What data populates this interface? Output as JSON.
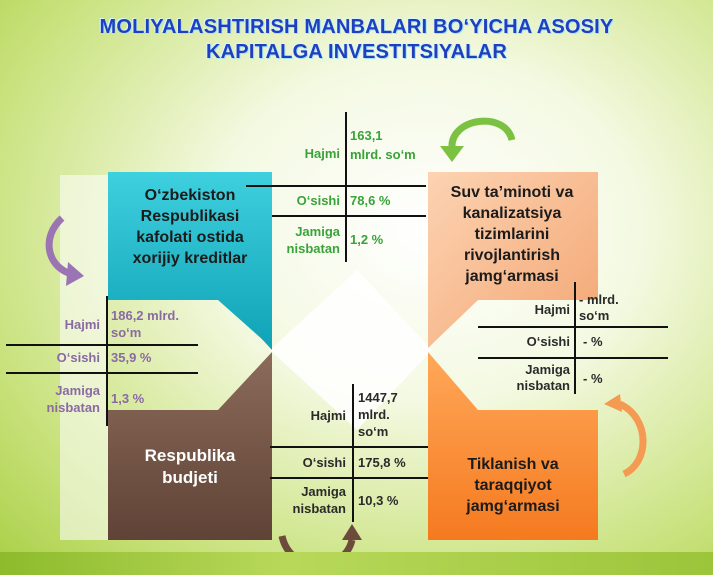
{
  "title": {
    "line1": "MOLIYALASHTIRISH MANBALARI BO‘YICHA ASOSIY",
    "line2": "KAPITALGA  INVESTITSIYALAR"
  },
  "colors": {
    "teal": "#1fb7c9",
    "peach": "#f6b283",
    "brown": "#7a5a4a",
    "orange": "#f98b2f",
    "green_text": "#39a33a",
    "purple_text": "#8a6aa3",
    "title": "#1f3fbf"
  },
  "sources": {
    "foreign": {
      "name": "O‘zbekiston Respublikasi kafolati ostida xorijiy kreditlar",
      "lines": [
        "O‘zbekiston",
        "Respublikasi",
        "kafolati ostida",
        "xorijiy kreditlar"
      ],
      "hajmi_label": "Hajmi",
      "hajmi_value_1": "163,1",
      "hajmi_value_2": "mlrd. so‘m",
      "osishi_label": "O‘sishi",
      "osishi_value": "78,6 %",
      "jamiga_label_1": "Jamiga",
      "jamiga_label_2": "nisbatan",
      "jamiga_value": "1,2 %"
    },
    "water": {
      "lines": [
        "Suv ta’minoti va",
        "kanalizatsiya",
        "tizimlarini",
        "rivojlantirish",
        "jamg‘armasi"
      ],
      "hajmi_label": "Hajmi",
      "hajmi_value_1": "- mlrd.",
      "hajmi_value_2": "so‘m",
      "osishi_label": "O‘sishi",
      "osishi_value": "- %",
      "jamiga_label_1": "Jamiga",
      "jamiga_label_2": "nisbatan",
      "jamiga_value": "- %"
    },
    "budget": {
      "lines": [
        "Respublika",
        "budjeti"
      ],
      "hajmi_label": "Hajmi",
      "hajmi_value_1": "186,2 mlrd.",
      "hajmi_value_2": "so‘m",
      "osishi_label": "O‘sishi",
      "osishi_value": "35,9 %",
      "jamiga_label_1": "Jamiga",
      "jamiga_label_2": "nisbatan",
      "jamiga_value": "1,3 %"
    },
    "development": {
      "lines": [
        "Tiklanish va",
        "taraqqiyot",
        "jamg‘armasi"
      ],
      "hajmi_label": "Hajmi",
      "hajmi_value_1": "1447,7",
      "hajmi_value_2": "mlrd.",
      "hajmi_value_3": "so‘m",
      "osishi_label": "O‘sishi",
      "osishi_value": "175,8 %",
      "jamiga_label_1": "Jamiga",
      "jamiga_label_2": "nisbatan",
      "jamiga_value": "10,3 %"
    }
  }
}
